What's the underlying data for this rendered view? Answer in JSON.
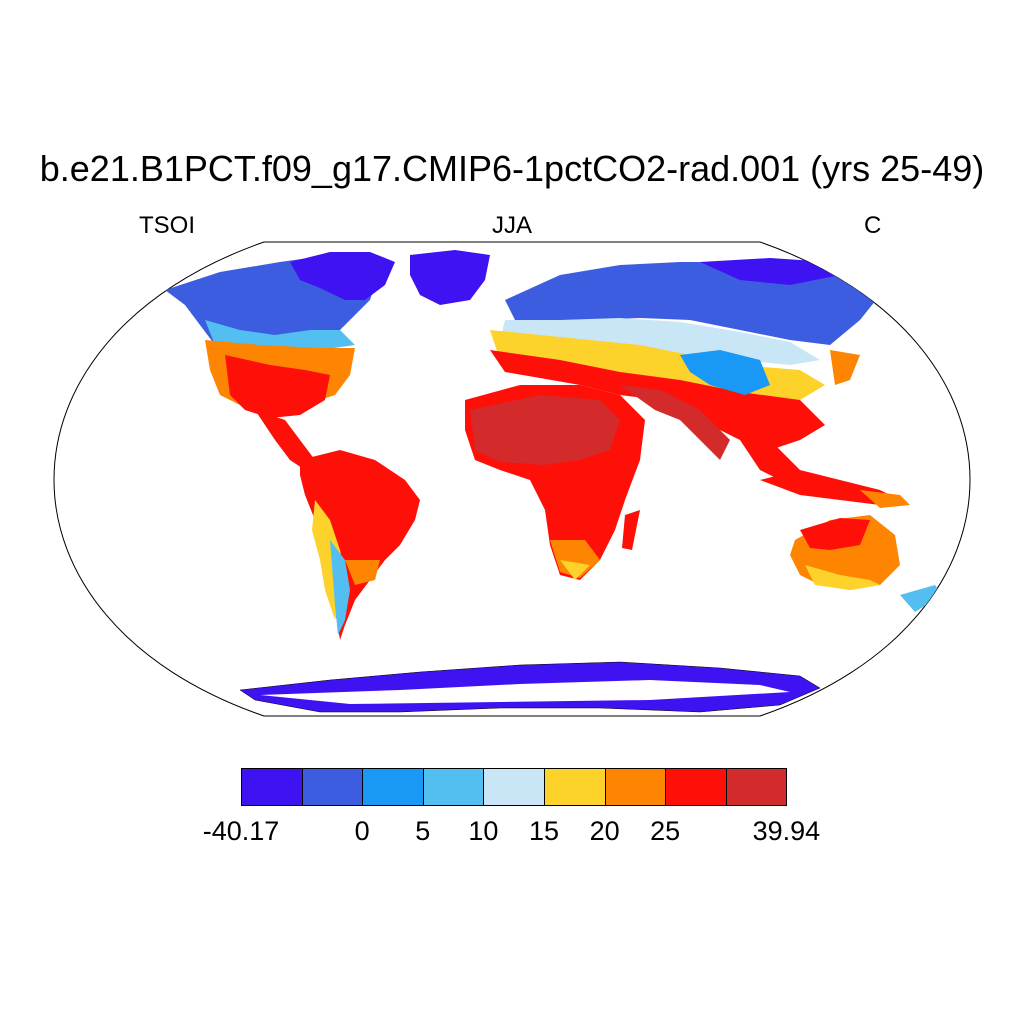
{
  "title": "b.e21.B1PCT.f09_g17.CMIP6-1pctCO2-rad.001 (yrs 25-49)",
  "left_label": "TSOI",
  "center_label": "JJA",
  "right_label": "C",
  "colorbar": {
    "colors": [
      "#3f12f2",
      "#3d5de0",
      "#1a98f5",
      "#52bff0",
      "#c8e6f6",
      "#fdd22a",
      "#fe8502",
      "#fe0f08",
      "#d32a2c"
    ],
    "tick_labels": [
      "-40.17",
      "0",
      "5",
      "10",
      "15",
      "20",
      "25",
      "39.94"
    ]
  }
}
